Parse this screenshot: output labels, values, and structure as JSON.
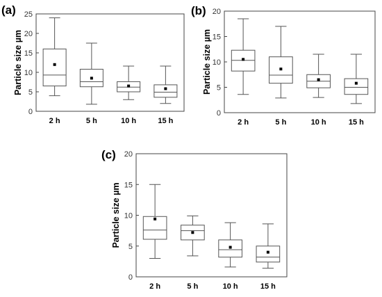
{
  "chart_data": [
    {
      "panel": "(a)",
      "type": "box",
      "ylabel": "Particle size µm",
      "ylim": [
        0,
        25
      ],
      "yticks": [
        0,
        5,
        10,
        15,
        20,
        25
      ],
      "categories": [
        "2 h",
        "5 h",
        "10 h",
        "15 h"
      ],
      "boxes": [
        {
          "category": "2 h",
          "whisker_low": 4.0,
          "q1": 6.5,
          "median": 9.3,
          "q3": 16.0,
          "whisker_high": 24.0,
          "mean": 12.0
        },
        {
          "category": "5 h",
          "whisker_low": 1.8,
          "q1": 6.3,
          "median": 7.6,
          "q3": 10.8,
          "whisker_high": 17.5,
          "mean": 8.5
        },
        {
          "category": "10 h",
          "whisker_low": 3.0,
          "q1": 5.0,
          "median": 6.2,
          "q3": 7.6,
          "whisker_high": 11.6,
          "mean": 6.5
        },
        {
          "category": "15 h",
          "whisker_low": 2.0,
          "q1": 3.6,
          "median": 4.9,
          "q3": 6.8,
          "whisker_high": 11.6,
          "mean": 5.8
        }
      ]
    },
    {
      "panel": "(b)",
      "type": "box",
      "ylabel": "Particle size µm",
      "ylim": [
        0,
        20
      ],
      "yticks": [
        0,
        5,
        10,
        15,
        20
      ],
      "categories": [
        "2 h",
        "5 h",
        "10 h",
        "15 h"
      ],
      "boxes": [
        {
          "category": "2 h",
          "whisker_low": 3.6,
          "q1": 8.2,
          "median": 10.3,
          "q3": 12.3,
          "whisker_high": 18.5,
          "mean": 10.5
        },
        {
          "category": "5 h",
          "whisker_low": 2.9,
          "q1": 5.8,
          "median": 7.4,
          "q3": 11.0,
          "whisker_high": 17.0,
          "mean": 8.6
        },
        {
          "category": "10 h",
          "whisker_low": 3.0,
          "q1": 4.9,
          "median": 6.2,
          "q3": 7.5,
          "whisker_high": 11.5,
          "mean": 6.5
        },
        {
          "category": "15 h",
          "whisker_low": 1.8,
          "q1": 3.6,
          "median": 5.0,
          "q3": 6.7,
          "whisker_high": 11.5,
          "mean": 5.8
        }
      ]
    },
    {
      "panel": "(c)",
      "type": "box",
      "ylabel": "Particle size µm",
      "ylim": [
        0,
        20
      ],
      "yticks": [
        0,
        5,
        10,
        15,
        20
      ],
      "categories": [
        "2 h",
        "5 h",
        "10 h",
        "15 h"
      ],
      "boxes": [
        {
          "category": "2 h",
          "whisker_low": 3.0,
          "q1": 6.1,
          "median": 7.6,
          "q3": 9.8,
          "whisker_high": 15.0,
          "mean": 9.4
        },
        {
          "category": "5 h",
          "whisker_low": 3.4,
          "q1": 6.0,
          "median": 7.5,
          "q3": 8.4,
          "whisker_high": 9.9,
          "mean": 7.2
        },
        {
          "category": "10 h",
          "whisker_low": 1.6,
          "q1": 3.2,
          "median": 4.4,
          "q3": 6.0,
          "whisker_high": 8.8,
          "mean": 4.8
        },
        {
          "category": "15 h",
          "whisker_low": 1.4,
          "q1": 2.4,
          "median": 3.2,
          "q3": 5.0,
          "whisker_high": 8.6,
          "mean": 4.0
        }
      ]
    }
  ]
}
